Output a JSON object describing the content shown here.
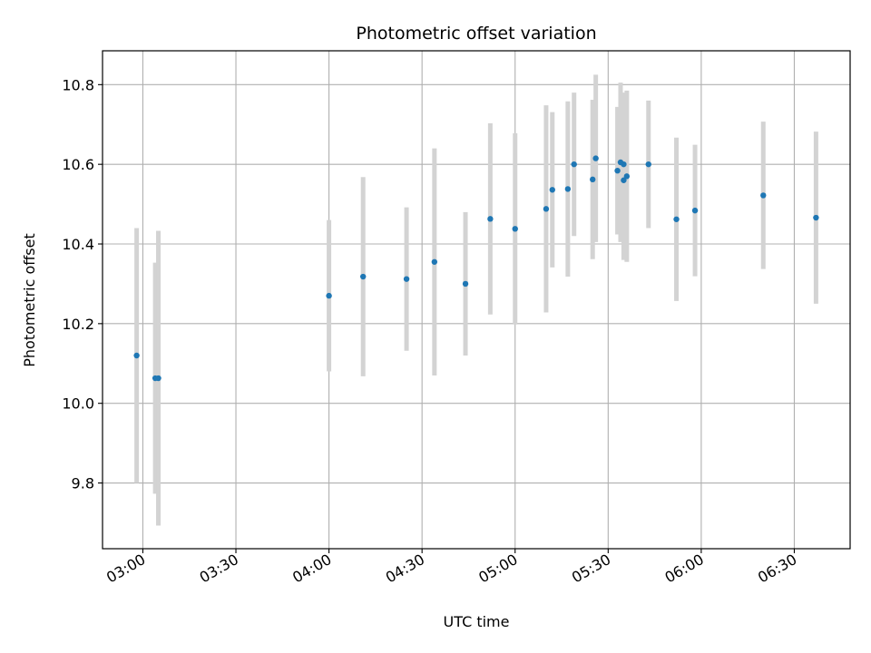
{
  "chart_data": {
    "type": "scatter",
    "title": "Photometric offset variation",
    "xlabel": "UTC time",
    "ylabel": "Photometric offset",
    "x_ticks": [
      "03:00",
      "03:30",
      "04:00",
      "04:30",
      "05:00",
      "05:30",
      "06:00",
      "06:30"
    ],
    "y_ticks": [
      "9.8",
      "10.0",
      "10.2",
      "10.4",
      "10.6",
      "10.8"
    ],
    "xlim": [
      "02:47",
      "06:48"
    ],
    "ylim": [
      9.635,
      10.885
    ],
    "grid": true,
    "colors": {
      "points": "#1f77b4",
      "errorbars": "#d3d3d3",
      "grid": "#b0b0b0"
    },
    "series": [
      {
        "points": [
          {
            "x": "02:58",
            "y": 10.12,
            "err": 0.32
          },
          {
            "x": "03:04",
            "y": 10.063,
            "err": 0.29
          },
          {
            "x": "03:05",
            "y": 10.063,
            "err": 0.37
          },
          {
            "x": "04:00",
            "y": 10.27,
            "err": 0.19
          },
          {
            "x": "04:11",
            "y": 10.318,
            "err": 0.25
          },
          {
            "x": "04:25",
            "y": 10.312,
            "err": 0.18
          },
          {
            "x": "04:34",
            "y": 10.355,
            "err": 0.285
          },
          {
            "x": "04:44",
            "y": 10.3,
            "err": 0.18
          },
          {
            "x": "04:52",
            "y": 10.463,
            "err": 0.24
          },
          {
            "x": "05:00",
            "y": 10.438,
            "err": 0.24
          },
          {
            "x": "05:10",
            "y": 10.488,
            "err": 0.26
          },
          {
            "x": "05:12",
            "y": 10.536,
            "err": 0.195
          },
          {
            "x": "05:17",
            "y": 10.538,
            "err": 0.22
          },
          {
            "x": "05:19",
            "y": 10.6,
            "err": 0.18
          },
          {
            "x": "05:25",
            "y": 10.562,
            "err": 0.2
          },
          {
            "x": "05:26",
            "y": 10.615,
            "err": 0.21
          },
          {
            "x": "05:33",
            "y": 10.584,
            "err": 0.16
          },
          {
            "x": "05:34",
            "y": 10.605,
            "err": 0.2
          },
          {
            "x": "05:35",
            "y": 10.56,
            "err": 0.2
          },
          {
            "x": "05:35",
            "y": 10.6,
            "err": 0.18
          },
          {
            "x": "05:36",
            "y": 10.57,
            "err": 0.215
          },
          {
            "x": "05:43",
            "y": 10.6,
            "err": 0.16
          },
          {
            "x": "05:52",
            "y": 10.462,
            "err": 0.205
          },
          {
            "x": "05:58",
            "y": 10.484,
            "err": 0.165
          },
          {
            "x": "06:20",
            "y": 10.522,
            "err": 0.185
          },
          {
            "x": "06:37",
            "y": 10.466,
            "err": 0.216
          }
        ]
      }
    ]
  }
}
